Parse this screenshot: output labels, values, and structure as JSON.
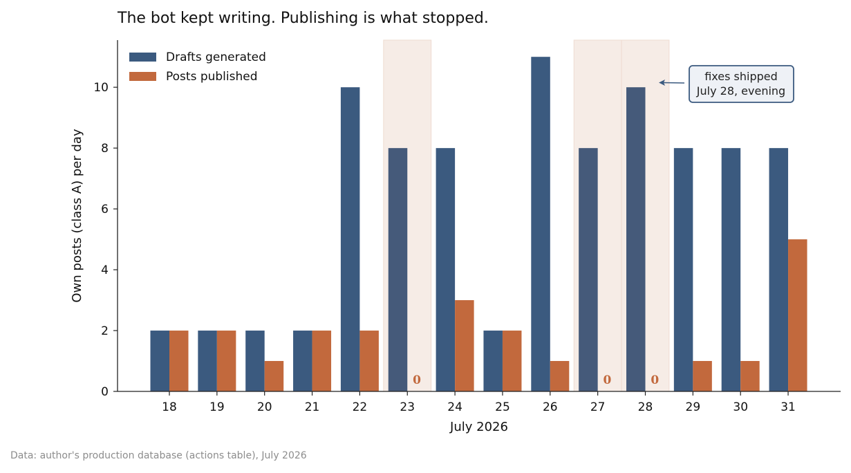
{
  "chart_data": {
    "type": "bar",
    "title": "The bot kept writing. Publishing is what stopped.",
    "xlabel": "July 2026",
    "ylabel": "Own posts (class A) per day",
    "ylim": [
      0,
      11.55
    ],
    "yticks": [
      0,
      2,
      4,
      6,
      8,
      10
    ],
    "grid": false,
    "legend_position": "top-left",
    "categories": [
      "18",
      "19",
      "20",
      "21",
      "22",
      "23",
      "24",
      "25",
      "26",
      "27",
      "28",
      "29",
      "30",
      "31"
    ],
    "series": [
      {
        "name": "Drafts generated",
        "color": "#3b5a7f",
        "values": [
          2,
          2,
          2,
          2,
          10,
          8,
          8,
          2,
          11,
          8,
          10,
          8,
          8,
          8
        ]
      },
      {
        "name": "Posts published",
        "color": "#c2693d",
        "values": [
          2,
          2,
          1,
          2,
          2,
          0,
          3,
          2,
          1,
          0,
          0,
          1,
          1,
          5
        ]
      }
    ],
    "highlight_days": [
      "23",
      "27",
      "28"
    ],
    "highlight_color": "#f6ece6",
    "zero_label": "0",
    "annotation": {
      "text_line1": "fixes shipped",
      "text_line2": "July 28, evening",
      "points_to_day": "28"
    }
  },
  "source_note": "Data: author's production database (actions table), July 2026"
}
